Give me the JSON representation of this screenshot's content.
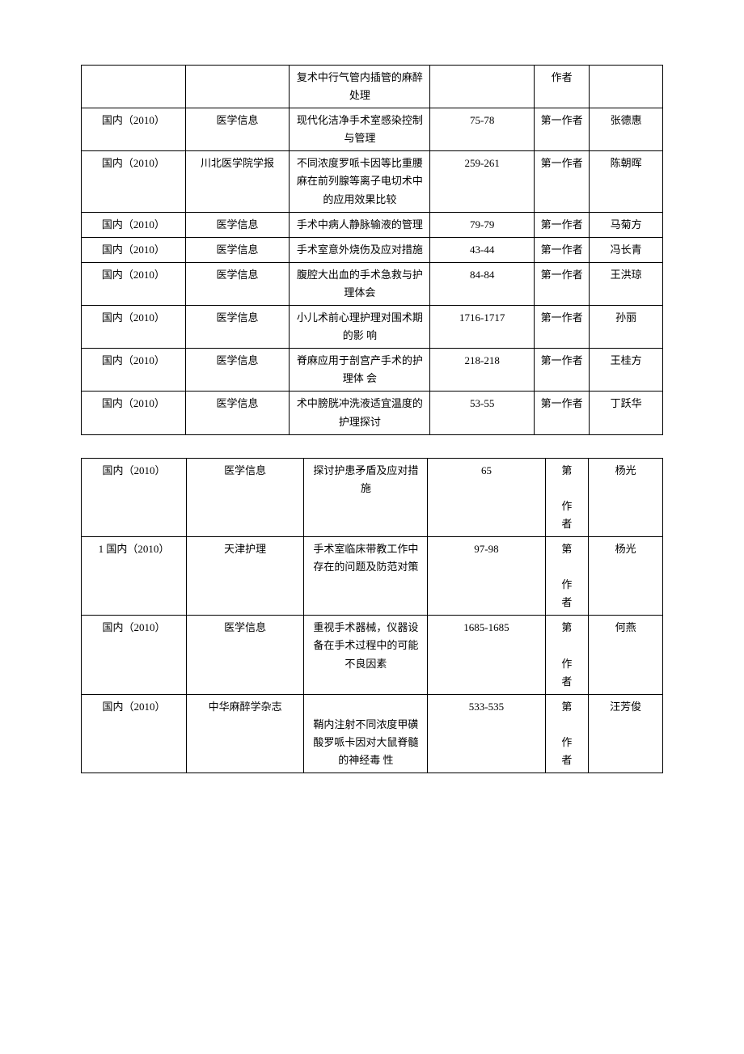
{
  "table1": {
    "rows": [
      {
        "type": "",
        "publication": "",
        "title": "复术中行气管内插管的麻醉处理",
        "pages": "",
        "role": "作者",
        "author": ""
      },
      {
        "type": "国内（2010）",
        "publication": "医学信息",
        "title": "现代化洁净手术室感染控制与管理",
        "pages": "75-78",
        "role": "第一作者",
        "author": "张德惠"
      },
      {
        "type": "国内（2010）",
        "publication": "川北医学院学报",
        "title": "不同浓度罗哌卡因等比重腰麻在前列腺等离子电切术中的应用效果比较",
        "pages": "259-261",
        "role": "第一作者",
        "author": "陈朝晖"
      },
      {
        "type": "国内（2010）",
        "publication": "医学信息",
        "title": "手术中病人静脉输液的管理",
        "pages": "79-79",
        "role": "第一作者",
        "author": "马菊方"
      },
      {
        "type": "国内（2010）",
        "publication": "医学信息",
        "title": "手术室意外烧伤及应对措施",
        "pages": "43-44",
        "role": "第一作者",
        "author": "冯长青"
      },
      {
        "type": "国内（2010）",
        "publication": "医学信息",
        "title": "腹腔大出血的手术急救与护理体会",
        "pages": "84-84",
        "role": "第一作者",
        "author": "王洪琼"
      },
      {
        "type": "国内（2010）",
        "publication": "医学信息",
        "title": "小儿术前心理护理对围术期的影 响",
        "pages": "1716-1717",
        "role": "第一作者",
        "author": "孙丽"
      },
      {
        "type": "国内（2010）",
        "publication": "医学信息",
        "title": "脊麻应用于剖宫产手术的护理体 会",
        "pages": "218-218",
        "role": "第一作者",
        "author": "王桂方"
      },
      {
        "type": "国内（2010）",
        "publication": "医学信息",
        "title": "术中膀胱冲洗液适宜温度的护理探讨",
        "pages": "53-55",
        "role": "第一作者",
        "author": "丁跃华"
      }
    ]
  },
  "table2": {
    "rows": [
      {
        "type": "国内（2010）",
        "publication": "医学信息",
        "title": "探讨护患矛盾及应对措施",
        "pages": "65",
        "role": "第\n\n作\n者",
        "author": "杨光"
      },
      {
        "type": "1 国内（2010）",
        "publication": "天津护理",
        "title": "手术室临床带教工作中存在的问题及防范对策",
        "pages": "97-98",
        "role": "第\n\n作\n者",
        "author": "杨光"
      },
      {
        "type": "国内（2010）",
        "publication": "医学信息",
        "title": "重视手术器械，仪器设备在手术过程中的可能不良因素",
        "pages": "1685-1685",
        "role": "第\n\n作\n者",
        "author": "何燕"
      },
      {
        "type": "国内（2010）",
        "publication": "中华麻醉学杂志",
        "title": "\n鞘内注射不同浓度甲磺酸罗哌卡因对大鼠脊髓的神经毒 性",
        "pages": "533-535",
        "role": "第\n\n作\n者",
        "author": "汪芳俊"
      }
    ]
  }
}
